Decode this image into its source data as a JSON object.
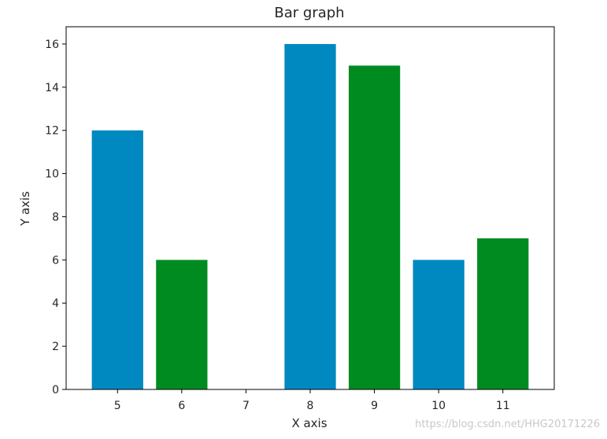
{
  "chart_data": {
    "type": "bar",
    "title": "Bar graph",
    "xlabel": "X axis",
    "ylabel": "Y axis",
    "xticks": [
      5,
      6,
      7,
      8,
      9,
      10,
      11
    ],
    "yticks": [
      0,
      2,
      4,
      6,
      8,
      10,
      12,
      14,
      16
    ],
    "xlim": [
      4.2,
      11.8
    ],
    "ylim": [
      0,
      16.8
    ],
    "series": [
      {
        "x": [
          5,
          8,
          10
        ],
        "values": [
          12,
          16,
          6
        ],
        "color": "#0088c0"
      },
      {
        "x": [
          6,
          9,
          11
        ],
        "values": [
          6,
          15,
          7
        ],
        "color": "#008b20"
      }
    ],
    "grid": false,
    "legend": "none"
  },
  "watermark": "https://blog.csdn.net/HHG20171226"
}
